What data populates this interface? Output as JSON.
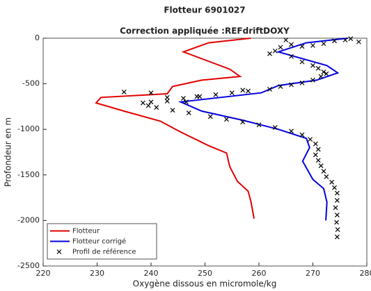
{
  "chart_data": {
    "type": "line",
    "title": "Flotteur 6901027",
    "subtitle": "Correction appliquée :REFdriftDOXY",
    "x_label": "Oxygène dissous en micromole/kg",
    "y_label": "Profondeur en m",
    "xlim": [
      220,
      280
    ],
    "xticks": [
      220,
      230,
      240,
      250,
      260,
      270,
      280
    ],
    "ylim": [
      -2500,
      0
    ],
    "yticks": [
      -2500,
      -2000,
      -1500,
      -1000,
      -500,
      0
    ],
    "grid": false,
    "legend": "lower-left",
    "series": [
      {
        "name": "Flotteur",
        "color": "#e00000",
        "mode": "line",
        "x": [
          258.5,
          250.7,
          246,
          254.6,
          256.5,
          249.4,
          244,
          243,
          230.7,
          229.8,
          235,
          241.7,
          245.5,
          250.7,
          254,
          254.6,
          256,
          258,
          258.5,
          259.1
        ],
        "y": [
          0,
          -50,
          -150,
          -340,
          -420,
          -460,
          -530,
          -610,
          -650,
          -710,
          -800,
          -910,
          -1030,
          -1180,
          -1260,
          -1410,
          -1570,
          -1680,
          -1790,
          -1980
        ]
      },
      {
        "name": "Flotteur corrigé",
        "color": "#0000e0",
        "mode": "line",
        "x": [
          276.5,
          268.8,
          263.6,
          272.6,
          274.6,
          270.7,
          263.6,
          260.4,
          245.5,
          249.4,
          257,
          263.6,
          268.8,
          269.4,
          268.1,
          270,
          272,
          272.6,
          272.4
        ],
        "y": [
          0,
          -50,
          -150,
          -300,
          -380,
          -460,
          -520,
          -600,
          -700,
          -800,
          -900,
          -1000,
          -1100,
          -1200,
          -1350,
          -1550,
          -1650,
          -1800,
          -2000
        ]
      },
      {
        "name": "Profil de référence",
        "color": "#000000",
        "mode": "markers",
        "x": [
          278.5,
          277,
          276,
          274,
          272,
          270,
          268,
          266,
          265,
          264,
          263,
          262,
          266,
          268,
          270,
          271,
          272,
          272.5,
          271.5,
          270,
          268,
          266,
          264,
          262,
          258,
          255,
          252,
          249,
          246,
          243,
          240,
          238.5,
          239.5,
          241,
          244,
          247,
          251,
          254,
          257,
          260,
          263,
          266,
          268,
          269.5,
          270.5,
          271,
          270.5,
          271,
          271.5,
          272,
          272.5,
          273.5,
          274,
          274.5,
          274.5,
          274.2,
          274.5,
          274.4,
          274.6,
          274.5,
          235,
          240,
          243,
          246.5,
          257,
          248.5
        ],
        "y": [
          -40,
          -5,
          -20,
          -30,
          -60,
          -80,
          -90,
          -70,
          -20,
          -100,
          -140,
          -170,
          -200,
          -260,
          -300,
          -330,
          -370,
          -390,
          -420,
          -460,
          -490,
          -510,
          -530,
          -560,
          -580,
          -600,
          -620,
          -640,
          -660,
          -690,
          -700,
          -710,
          -740,
          -760,
          -790,
          -820,
          -860,
          -890,
          -920,
          -950,
          -980,
          -1020,
          -1060,
          -1110,
          -1160,
          -1220,
          -1280,
          -1340,
          -1400,
          -1460,
          -1520,
          -1580,
          -1640,
          -1700,
          -1780,
          -1860,
          -1940,
          -2020,
          -2100,
          -2180,
          -590,
          -600,
          -650,
          -700,
          -570,
          -640
        ]
      }
    ]
  }
}
